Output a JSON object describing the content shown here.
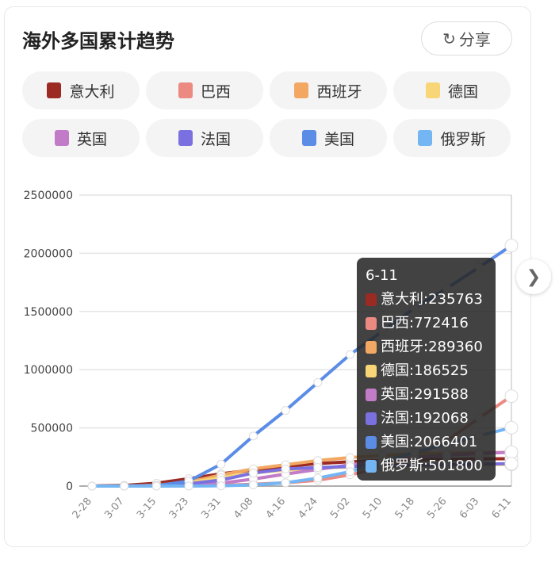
{
  "title": "海外多国累计趋势",
  "share_label": "分享",
  "icons": {
    "share": "share-refresh-icon",
    "next": "chevron-right-icon"
  },
  "chart_data": {
    "type": "line",
    "title": "",
    "xlabel": "",
    "ylabel": "",
    "ylim": [
      0,
      2500000
    ],
    "yticks": [
      "0",
      "500000",
      "1000000",
      "1500000",
      "2000000",
      "2500000"
    ],
    "categories": [
      "2-28",
      "3-07",
      "3-15",
      "3-23",
      "3-31",
      "4-08",
      "4-16",
      "4-24",
      "5-02",
      "5-10",
      "5-18",
      "5-26",
      "6-03",
      "6-11"
    ],
    "grid": true,
    "legend": "top",
    "series": [
      {
        "name": "意大利",
        "color": "#9b2a22",
        "values": [
          1100,
          5900,
          24700,
          63900,
          105800,
          139400,
          168900,
          192900,
          209300,
          219100,
          226000,
          230600,
          234000,
          235763
        ]
      },
      {
        "name": "巴西",
        "color": "#ec8a82",
        "values": [
          1,
          20,
          200,
          1900,
          5700,
          15900,
          28300,
          50000,
          97000,
          162000,
          255000,
          391000,
          584000,
          772416
        ]
      },
      {
        "name": "西班牙",
        "color": "#f2a862",
        "values": [
          30,
          500,
          7800,
          35000,
          95900,
          148000,
          182800,
          219800,
          245500,
          262000,
          278000,
          283000,
          287000,
          289360
        ]
      },
      {
        "name": "德国",
        "color": "#f8d677",
        "values": [
          60,
          800,
          5800,
          29000,
          71800,
          113000,
          137000,
          154000,
          164000,
          171000,
          176000,
          180000,
          184000,
          186525
        ]
      },
      {
        "name": "英国",
        "color": "#c27bc6",
        "values": [
          20,
          200,
          1400,
          6700,
          25000,
          60700,
          103000,
          143000,
          183000,
          219000,
          246000,
          265000,
          280000,
          291588
        ]
      },
      {
        "name": "法国",
        "color": "#7b70e0",
        "values": [
          60,
          900,
          5400,
          19800,
          52000,
          112000,
          147000,
          159000,
          168000,
          176000,
          180000,
          183000,
          189000,
          192068
        ]
      },
      {
        "name": "美国",
        "color": "#5b8ce6",
        "values": [
          0,
          400,
          3500,
          43000,
          188000,
          430000,
          650000,
          890000,
          1130000,
          1330000,
          1530000,
          1700000,
          1880000,
          2066401
        ]
      },
      {
        "name": "俄罗斯",
        "color": "#74b6f3",
        "values": [
          2,
          10,
          60,
          440,
          2300,
          10000,
          27900,
          68600,
          124000,
          209000,
          290000,
          362000,
          432000,
          501800
        ]
      }
    ],
    "tooltip": {
      "date": "6-11",
      "rows": [
        "意大利:235763",
        "巴西:772416",
        "西班牙:289360",
        "德国:186525",
        "英国:291588",
        "法国:192068",
        "美国:2066401",
        "俄罗斯:501800"
      ]
    }
  }
}
